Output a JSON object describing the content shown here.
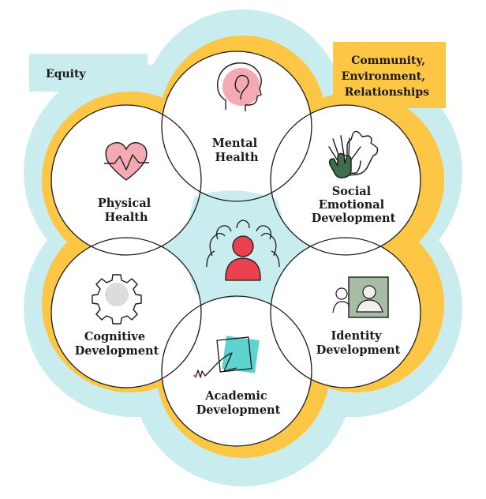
{
  "tags": {
    "equity": "Equity",
    "community": [
      "Community,",
      "Environment,",
      "Relationships"
    ]
  },
  "domains": {
    "mental": [
      "Mental",
      "Health"
    ],
    "social": [
      "Social",
      "Emotional",
      "Development"
    ],
    "identity": [
      "Identity",
      "Development"
    ],
    "academic": [
      "Academic",
      "Development"
    ],
    "cognitive": [
      "Cognitive",
      "Development"
    ],
    "physical": [
      "Physical",
      "Health"
    ]
  },
  "icons": {
    "mental": "head-icon",
    "social": "hands-icon",
    "identity": "portrait-icon",
    "academic": "signature-icon",
    "cognitive": "gear-icon",
    "physical": "heart-icon",
    "center": "group-icon"
  },
  "colors": {
    "outer_band": "#c9ecee",
    "inner_band": "#fdc645",
    "center_fill": "#c9ecee",
    "circle_fill": "#ffffff",
    "outline": "#1a1a1a",
    "accent_red": "#ea4150",
    "accent_pink": "#f5a9b2",
    "accent_teal": "#5dd2cf",
    "accent_green": "#3f6e4e",
    "accent_sage": "#a7bca5",
    "accent_gray": "#dcdcdc"
  }
}
